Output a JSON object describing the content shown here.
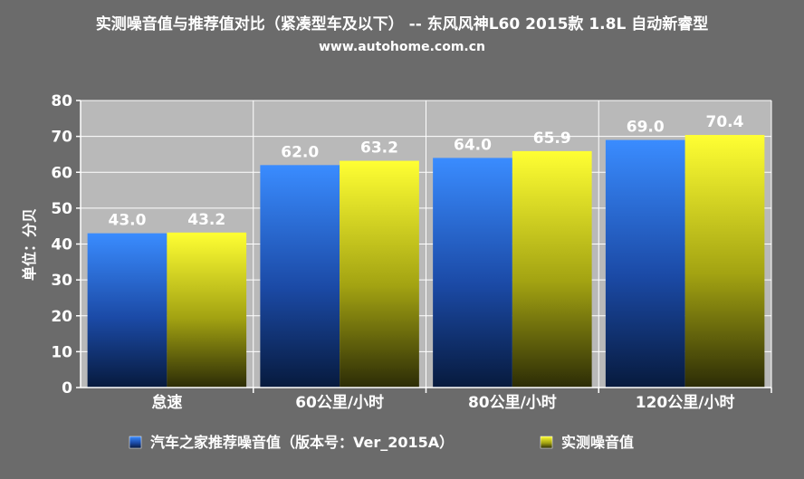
{
  "chart_data": {
    "type": "bar",
    "title": "实测噪音值与推荐值对比（紧凑型车及以下） -- 东风风神L60 2015款 1.8L 自动新睿型",
    "subtitle": "www.autohome.com.cn",
    "xlabel": "",
    "ylabel": "单位：分贝",
    "ylim": [
      0,
      80
    ],
    "yticks": [
      0,
      10,
      20,
      30,
      40,
      50,
      60,
      70,
      80
    ],
    "grid": true,
    "legend_position": "bottom",
    "categories": [
      "怠速",
      "60公里/小时",
      "80公里/小时",
      "120公里/小时"
    ],
    "series": [
      {
        "name": "汽车之家推荐噪音值（版本号：Ver_2015A）",
        "values": [
          43.0,
          62.0,
          64.0,
          69.0
        ],
        "labels": [
          "43.0",
          "62.0",
          "64.0",
          "69.0"
        ],
        "color": "#2f86ff"
      },
      {
        "name": "实测噪音值",
        "values": [
          43.2,
          63.2,
          65.9,
          70.4
        ],
        "labels": [
          "43.2",
          "63.2",
          "65.9",
          "70.4"
        ],
        "color": "#ffff2a"
      }
    ],
    "colors": {
      "background": "#6b6b6b",
      "plot_background": "#b9b9b9",
      "grid": "#ffffff",
      "text": "#ffffff"
    }
  }
}
